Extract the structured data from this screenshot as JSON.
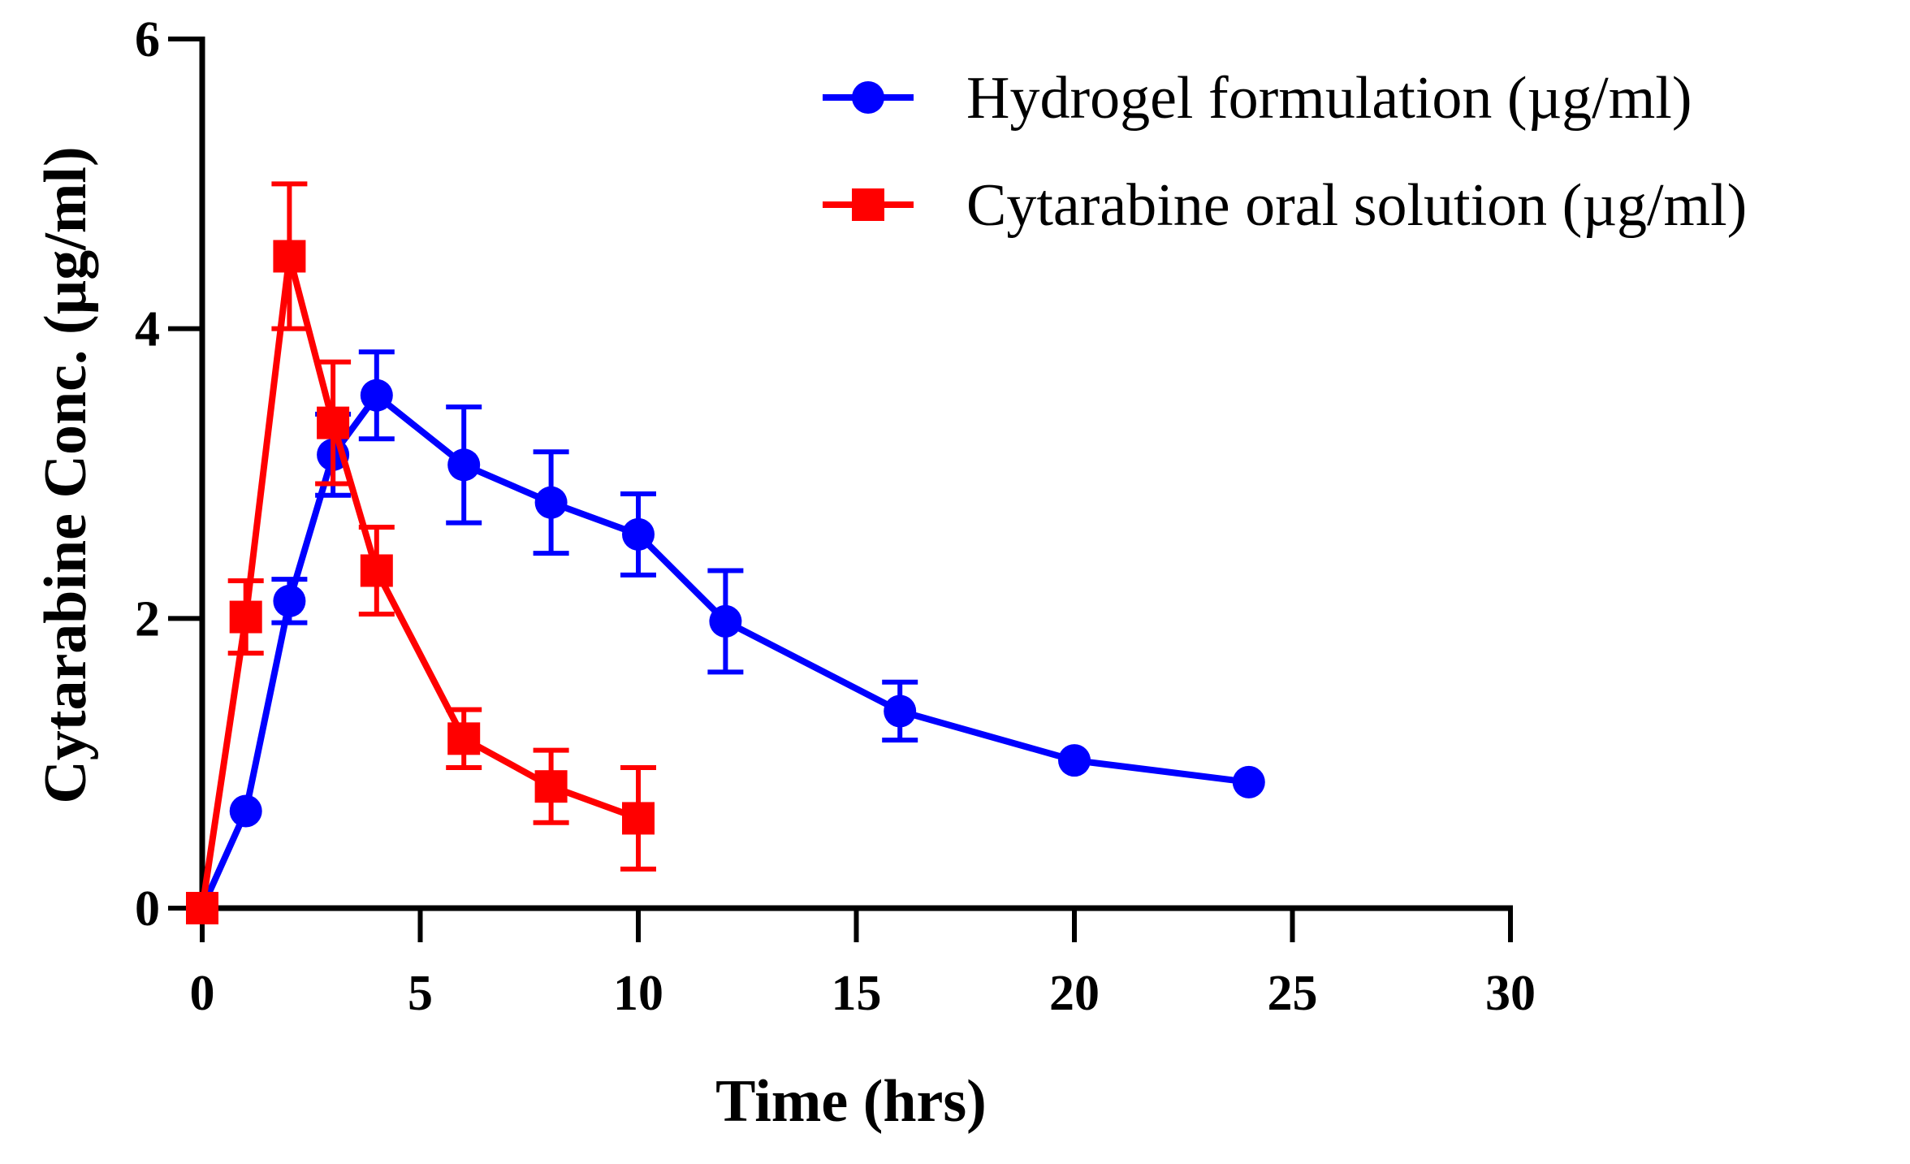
{
  "chart_data": {
    "type": "line",
    "title": "",
    "xlabel": "Time (hrs)",
    "ylabel": "Cytarabine Conc. (µg/ml)",
    "xlim": [
      0,
      30
    ],
    "ylim": [
      0,
      6
    ],
    "xticks": [
      0,
      5,
      10,
      15,
      20,
      25,
      30
    ],
    "yticks": [
      0,
      2,
      4,
      6
    ],
    "x_tick_labels": [
      "0",
      "5",
      "10",
      "15",
      "20",
      "25",
      "30"
    ],
    "y_tick_labels": [
      "0",
      "2",
      "4",
      "6"
    ],
    "grid": false,
    "legend_position": "top-right",
    "series": [
      {
        "name": "Hydrogel formulation (µg/ml)",
        "color": "#0000ff",
        "marker": "circle",
        "x": [
          0,
          1,
          2,
          3,
          4,
          6,
          8,
          10,
          12,
          16,
          20,
          24
        ],
        "y": [
          0,
          0.67,
          2.12,
          3.13,
          3.54,
          3.06,
          2.8,
          2.58,
          1.98,
          1.36,
          1.02,
          0.87
        ],
        "error": [
          0,
          0,
          0.15,
          0.28,
          0.3,
          0.4,
          0.35,
          0.28,
          0.35,
          0.2,
          0,
          0
        ]
      },
      {
        "name": "Cytarabine oral solution (µg/ml)",
        "color": "#ff0000",
        "marker": "square",
        "x": [
          0,
          1,
          2,
          3,
          4,
          6,
          8,
          10
        ],
        "y": [
          0,
          2.01,
          4.5,
          3.35,
          2.33,
          1.17,
          0.84,
          0.62
        ],
        "error": [
          0,
          0.25,
          0.5,
          0.42,
          0.3,
          0.2,
          0.25,
          0.35
        ]
      }
    ]
  }
}
